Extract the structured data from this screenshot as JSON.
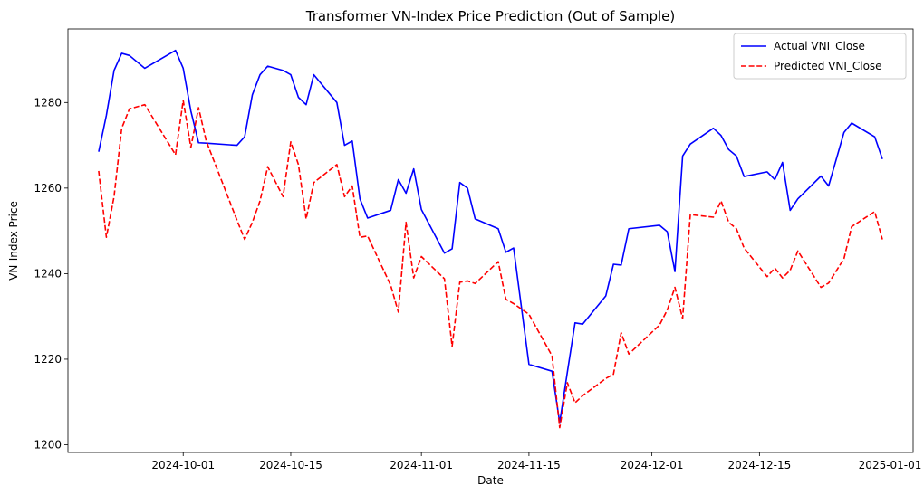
{
  "chart_data": {
    "type": "line",
    "title": "Transformer VN-Index Price Prediction (Out of Sample)",
    "xlabel": "Date",
    "ylabel": "VN-Index Price",
    "xlim": [
      "2024-09-16",
      "2025-01-04"
    ],
    "ylim": [
      1198.2,
      1297.2
    ],
    "x_ticks": [
      "2024-10-01",
      "2024-10-15",
      "2024-11-01",
      "2024-11-15",
      "2024-12-01",
      "2024-12-15",
      "2025-01-01"
    ],
    "y_ticks": [
      1200,
      1220,
      1240,
      1260,
      1280
    ],
    "grid": false,
    "legend": {
      "position": "top-right"
    },
    "dates": [
      "2024-09-20",
      "2024-09-21",
      "2024-09-22",
      "2024-09-23",
      "2024-09-24",
      "2024-09-26",
      "2024-09-30",
      "2024-10-01",
      "2024-10-02",
      "2024-10-03",
      "2024-10-04",
      "2024-10-08",
      "2024-10-09",
      "2024-10-10",
      "2024-10-11",
      "2024-10-12",
      "2024-10-14",
      "2024-10-15",
      "2024-10-16",
      "2024-10-17",
      "2024-10-18",
      "2024-10-21",
      "2024-10-22",
      "2024-10-23",
      "2024-10-24",
      "2024-10-25",
      "2024-10-28",
      "2024-10-29",
      "2024-10-30",
      "2024-10-31",
      "2024-11-01",
      "2024-11-04",
      "2024-11-05",
      "2024-11-06",
      "2024-11-07",
      "2024-11-08",
      "2024-11-11",
      "2024-11-12",
      "2024-11-13",
      "2024-11-15",
      "2024-11-18",
      "2024-11-19",
      "2024-11-20",
      "2024-11-21",
      "2024-11-22",
      "2024-11-25",
      "2024-11-26",
      "2024-11-27",
      "2024-11-28",
      "2024-12-02",
      "2024-12-03",
      "2024-12-04",
      "2024-12-05",
      "2024-12-06",
      "2024-12-09",
      "2024-12-10",
      "2024-12-11",
      "2024-12-12",
      "2024-12-13",
      "2024-12-16",
      "2024-12-17",
      "2024-12-18",
      "2024-12-19",
      "2024-12-20",
      "2024-12-23",
      "2024-12-24",
      "2024-12-26",
      "2024-12-27",
      "2024-12-30",
      "2024-12-31"
    ],
    "series": [
      {
        "name": "Actual VNI_Close",
        "color": "#0000ff",
        "style": "solid",
        "values": [
          1268.5,
          1277.0,
          1287.5,
          1291.5,
          1291.0,
          1288.0,
          1292.2,
          1288.0,
          1278.0,
          1270.6,
          1270.5,
          1270.0,
          1272.0,
          1281.8,
          1286.5,
          1288.5,
          1287.5,
          1286.5,
          1281.2,
          1279.5,
          1286.5,
          1280.0,
          1270.0,
          1271.0,
          1257.5,
          1253.0,
          1254.8,
          1262.0,
          1258.8,
          1264.5,
          1255.0,
          1244.8,
          1245.8,
          1261.3,
          1260.0,
          1252.8,
          1250.5,
          1245.0,
          1246.0,
          1218.8,
          1217.2,
          1205.2,
          1217.0,
          1228.5,
          1228.2,
          1234.8,
          1242.2,
          1242.0,
          1250.5,
          1251.3,
          1249.8,
          1240.5,
          1267.5,
          1270.3,
          1274.0,
          1272.3,
          1269.0,
          1267.5,
          1262.7,
          1263.8,
          1262.0,
          1266.0,
          1254.8,
          1257.5,
          1262.8,
          1260.5,
          1273.0,
          1275.2,
          1272.0,
          1266.8
        ]
      },
      {
        "name": "Predicted VNI_Close",
        "color": "#ff0000",
        "style": "dashed",
        "values": [
          1264.0,
          1248.5,
          1258.0,
          1274.0,
          1278.5,
          1279.5,
          1267.8,
          1280.5,
          1269.5,
          1278.8,
          1271.0,
          1252.5,
          1248.0,
          1252.0,
          1257.0,
          1265.0,
          1258.0,
          1270.8,
          1265.5,
          1252.8,
          1261.3,
          1265.5,
          1258.0,
          1260.5,
          1248.5,
          1248.8,
          1237.3,
          1231.0,
          1252.0,
          1239.0,
          1244.0,
          1238.8,
          1223.0,
          1238.0,
          1238.3,
          1237.7,
          1242.8,
          1234.0,
          1233.0,
          1230.5,
          1220.8,
          1204.0,
          1214.5,
          1209.8,
          1211.5,
          1215.5,
          1216.5,
          1226.2,
          1221.2,
          1228.0,
          1231.5,
          1236.8,
          1229.5,
          1253.8,
          1253.2,
          1257.0,
          1252.0,
          1250.5,
          1246.0,
          1239.3,
          1241.3,
          1239.0,
          1240.8,
          1245.3,
          1236.8,
          1237.8,
          1243.5,
          1251.0,
          1254.5,
          1248.0
        ]
      }
    ]
  }
}
